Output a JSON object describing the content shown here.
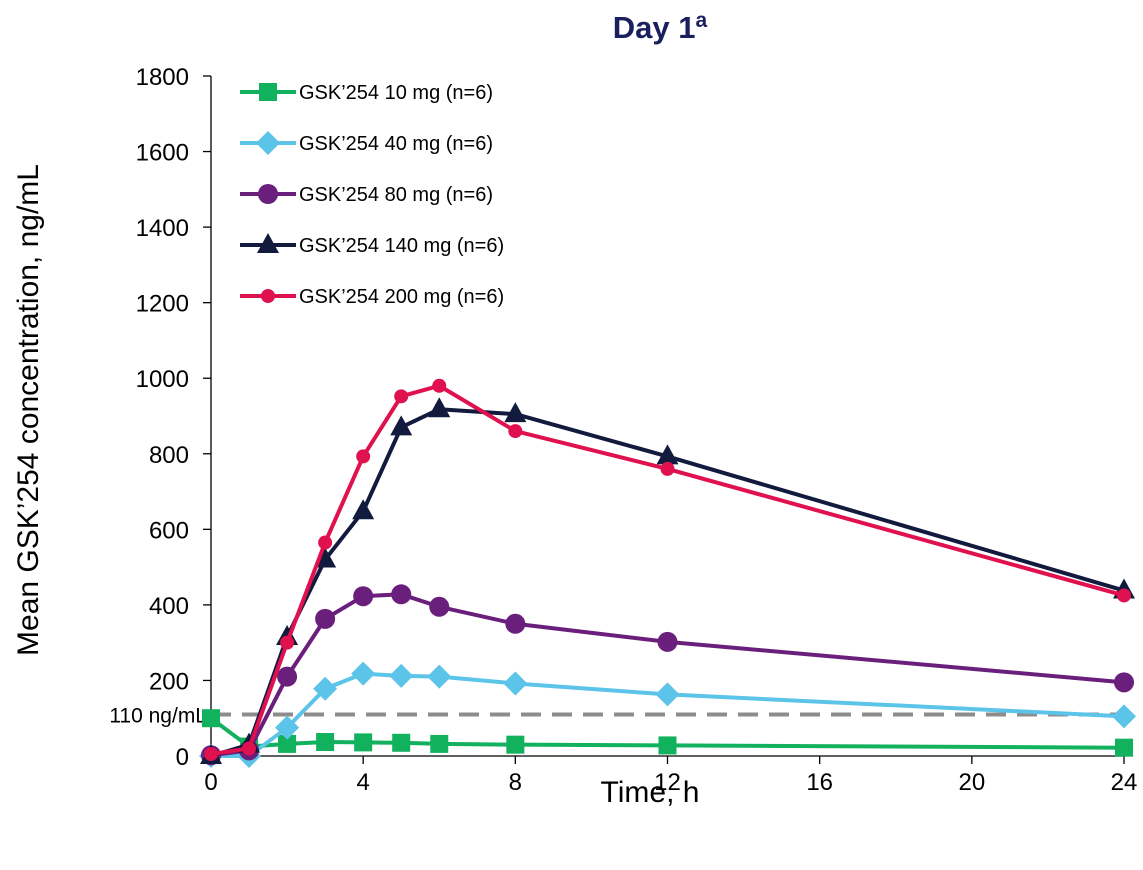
{
  "chart_data": {
    "type": "line",
    "title": "Day 1",
    "title_superscript": "a",
    "xlabel": "Time, h",
    "ylabel": "Mean GSK’254 concentration, ng/mL",
    "xlim": [
      0,
      24
    ],
    "ylim": [
      0,
      1800
    ],
    "xticks": [
      0,
      4,
      8,
      12,
      16,
      20,
      24
    ],
    "yticks": [
      0,
      200,
      400,
      600,
      800,
      1000,
      1200,
      1400,
      1600,
      1800
    ],
    "grid": false,
    "legend_position": "top-left",
    "reference_line": {
      "value": 110,
      "label": "110 ng/mL",
      "color": "#8c8c8c",
      "style": "dashed"
    },
    "series": [
      {
        "name": "GSK’254 10 mg (n=6)",
        "color": "#11b15d",
        "marker": "square",
        "x": [
          0,
          1,
          2,
          3,
          4,
          5,
          6,
          8,
          12,
          24
        ],
        "y": [
          100,
          25,
          32,
          37,
          36,
          35,
          32,
          30,
          28,
          22
        ]
      },
      {
        "name": "GSK’254 40 mg (n=6)",
        "color": "#5bc4e8",
        "marker": "diamond",
        "x": [
          0,
          1,
          2,
          3,
          4,
          5,
          6,
          8,
          12,
          24
        ],
        "y": [
          0,
          0,
          75,
          178,
          218,
          212,
          210,
          192,
          163,
          105
        ]
      },
      {
        "name": "GSK’254 80 mg (n=6)",
        "color": "#6b1f7c",
        "marker": "circle",
        "x": [
          0,
          1,
          2,
          3,
          4,
          5,
          6,
          8,
          12,
          24
        ],
        "y": [
          2,
          15,
          210,
          363,
          423,
          428,
          395,
          350,
          302,
          195
        ]
      },
      {
        "name": "GSK’254 140 mg (n=6)",
        "color": "#121a3e",
        "marker": "triangle",
        "x": [
          0,
          1,
          2,
          3,
          4,
          5,
          6,
          8,
          12,
          24
        ],
        "y": [
          0,
          30,
          315,
          520,
          648,
          870,
          918,
          905,
          793,
          438
        ]
      },
      {
        "name": "GSK’254 200 mg (n=6)",
        "color": "#e0114f",
        "marker": "circle-small",
        "x": [
          0,
          1,
          2,
          3,
          4,
          5,
          6,
          8,
          12,
          24
        ],
        "y": [
          5,
          20,
          300,
          565,
          793,
          952,
          980,
          860,
          760,
          425
        ]
      }
    ]
  }
}
